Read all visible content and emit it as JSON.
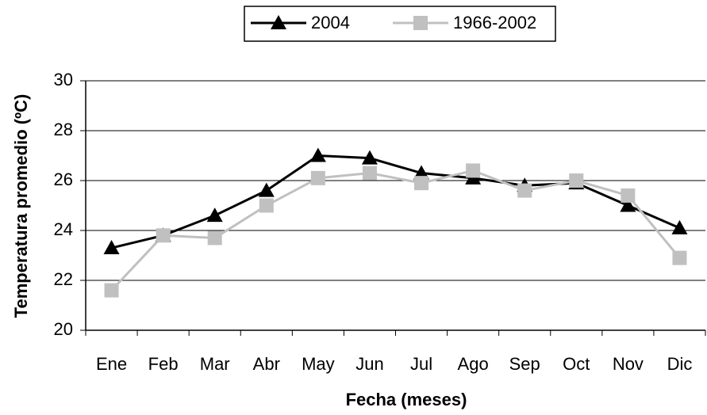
{
  "chart_data": {
    "type": "line",
    "x_label": "Fecha (meses)",
    "y_label": "Temperatura promedio (ºC)",
    "categories": [
      "Ene",
      "Feb",
      "Mar",
      "Abr",
      "May",
      "Jun",
      "Jul",
      "Ago",
      "Sep",
      "Oct",
      "Nov",
      "Dic"
    ],
    "series": [
      {
        "name": "2004",
        "color": "#000000",
        "marker": "triangle",
        "values": [
          23.3,
          23.8,
          24.6,
          25.6,
          27.0,
          26.9,
          26.3,
          26.1,
          25.8,
          25.9,
          25.0,
          24.1
        ]
      },
      {
        "name": "1966-2002",
        "color": "#c0c0c0",
        "marker": "square",
        "values": [
          21.6,
          23.8,
          23.7,
          25.0,
          26.1,
          26.3,
          25.9,
          26.4,
          25.6,
          26.0,
          25.4,
          22.9
        ]
      }
    ],
    "ylim": [
      20,
      30
    ],
    "yticks": [
      20,
      22,
      24,
      26,
      28,
      30
    ],
    "grid": true,
    "legend": "top"
  }
}
